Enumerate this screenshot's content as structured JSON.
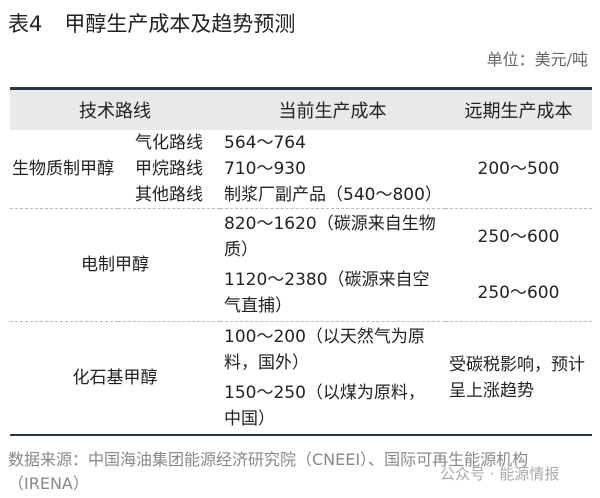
{
  "title": {
    "num": "表4",
    "text": "甲醇生产成本及趋势预测"
  },
  "unit": "单位：美元/吨",
  "headers": [
    "技术路线",
    "当前生产成本",
    "远期生产成本"
  ],
  "biomass": {
    "label": "生物质制甲醇",
    "routes": [
      {
        "name": "气化路线",
        "cost": "564～764"
      },
      {
        "name": "甲烷路线",
        "cost": "710～930"
      },
      {
        "name": "其他路线",
        "cost": "制浆厂副产品（540～800）"
      }
    ],
    "future": "200～500"
  },
  "electric": {
    "label": "电制甲醇",
    "rows": [
      {
        "cost": "820～1620（碳源来自生物质）",
        "future": "250～600"
      },
      {
        "cost": "1120～2380（碳源来自空气直捕）",
        "future": "250～600"
      }
    ]
  },
  "fossil": {
    "label": "化石基甲醇",
    "rows": [
      {
        "cost": "100～200（以天然气为原料，国外）"
      },
      {
        "cost": "150～250（以煤为原料，中国）"
      }
    ],
    "future": "受碳税影响，预计呈上涨趋势"
  },
  "source": "数据来源：中国海油集团能源经济研究院（CNEEI）、国际可再生能源机构（IRENA）",
  "watermark": "公众号 · 能源情报"
}
